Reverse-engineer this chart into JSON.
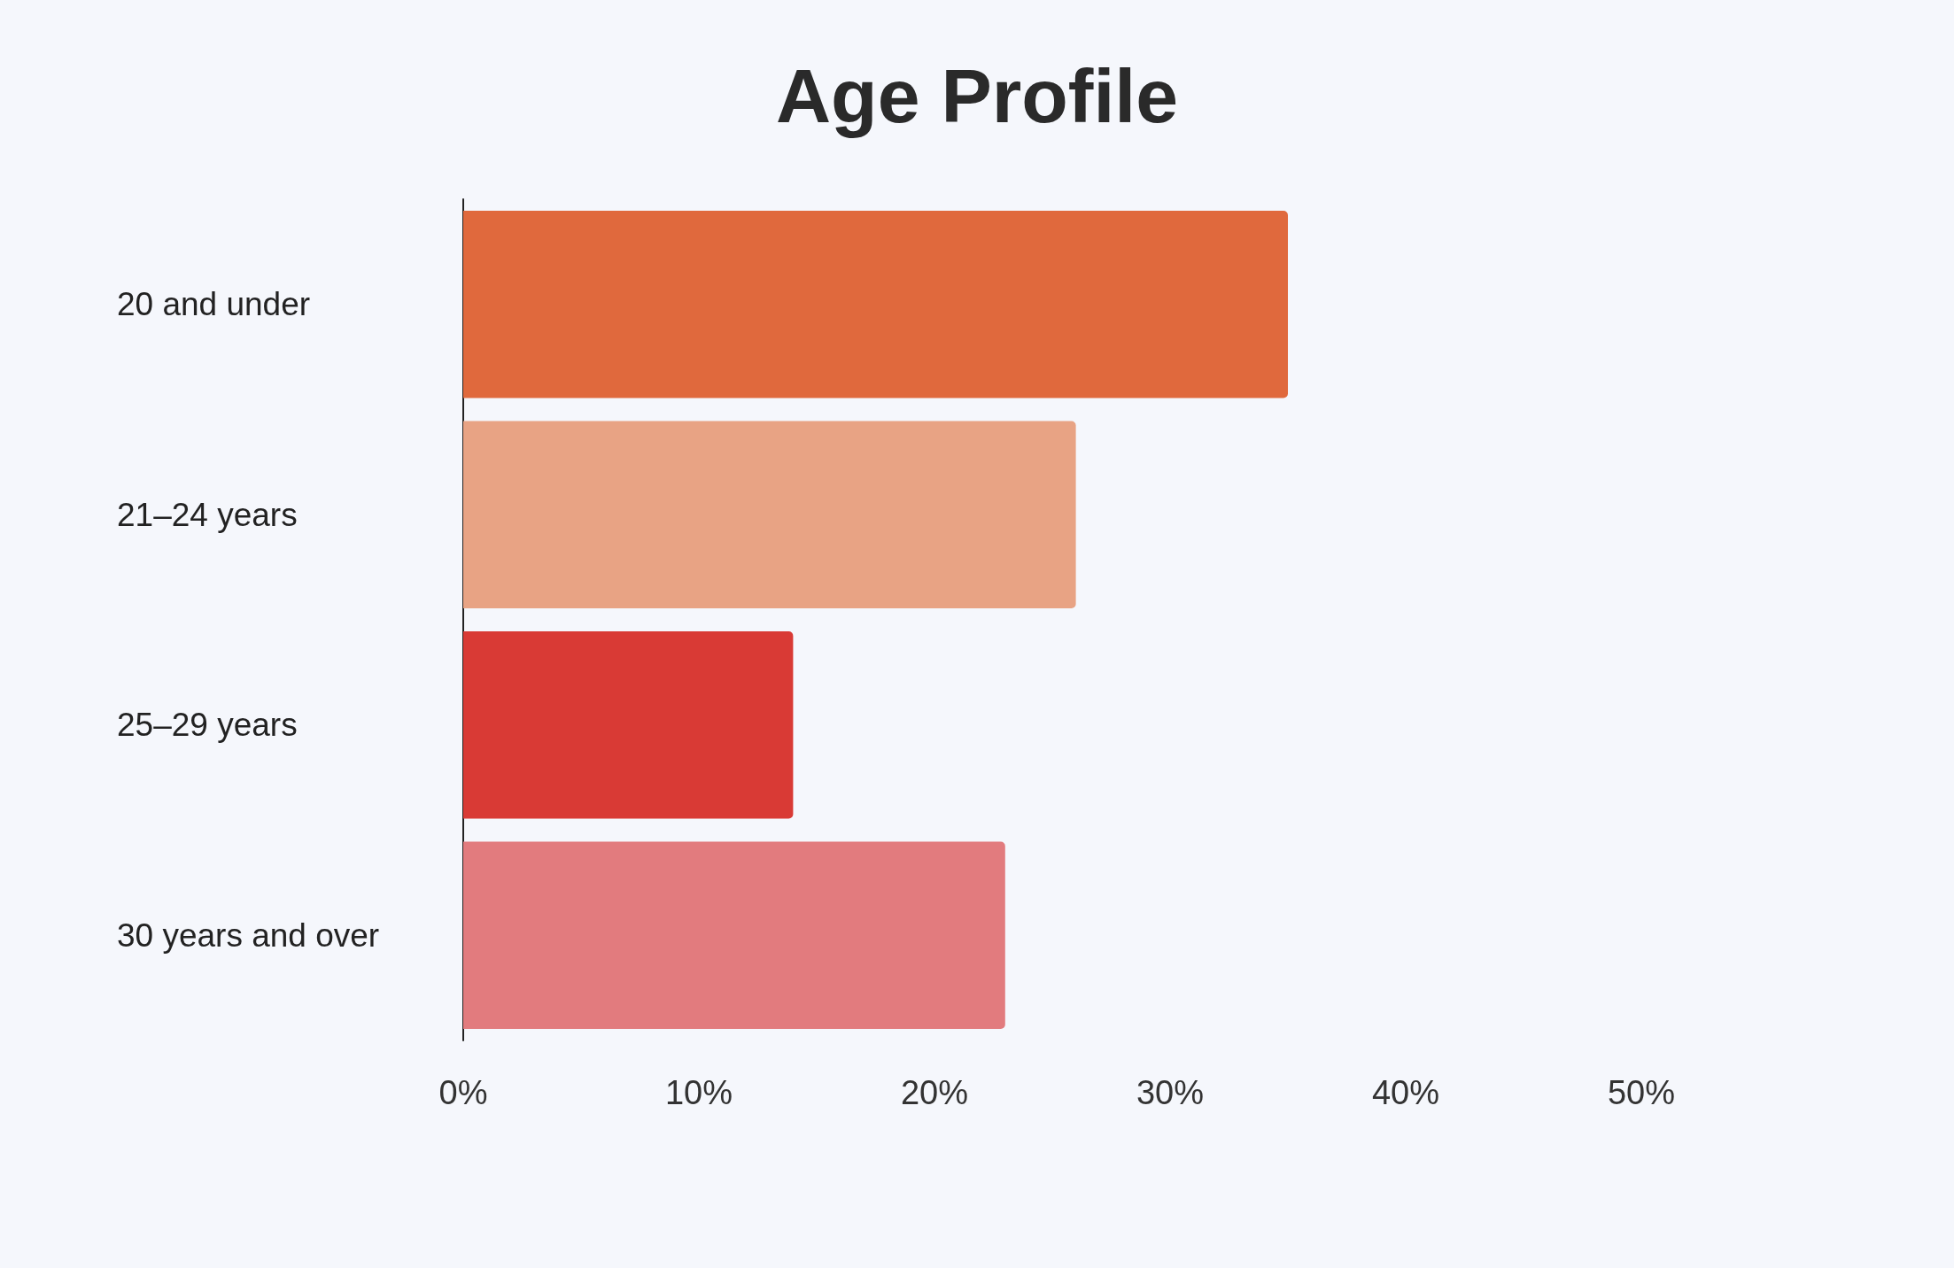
{
  "chart_data": {
    "type": "bar",
    "orientation": "horizontal",
    "title": "Age Profile",
    "categories": [
      "20 and under",
      "21–24 years",
      "25–29 years",
      "30 years and over"
    ],
    "values": [
      35,
      26,
      14,
      23
    ],
    "colors": [
      "#e0693d",
      "#e8a384",
      "#d93a35",
      "#e27b7e"
    ],
    "xlim": [
      0,
      50
    ],
    "xticks": [
      {
        "value": 0,
        "label": "0%"
      },
      {
        "value": 10,
        "label": "10%"
      },
      {
        "value": 20,
        "label": "20%"
      },
      {
        "value": 30,
        "label": "30%"
      },
      {
        "value": 40,
        "label": "40%"
      },
      {
        "value": 50,
        "label": "50%"
      }
    ],
    "grid": false
  }
}
